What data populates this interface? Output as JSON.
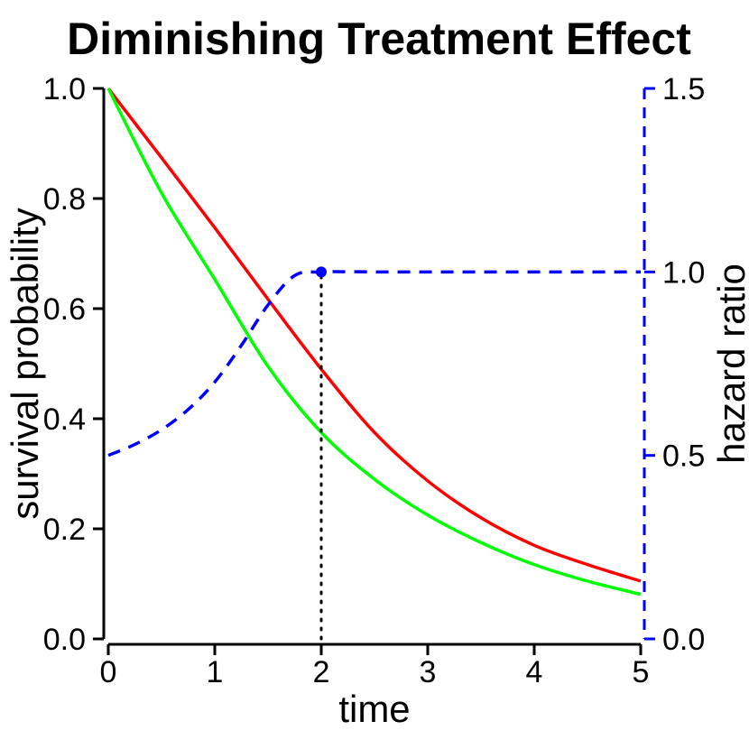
{
  "chart_data": {
    "type": "line",
    "title": "Diminishing Treatment Effect",
    "xlabel": "time",
    "ylabel": "survival probability",
    "y2label": "hazard ratio",
    "xlim": [
      0,
      5
    ],
    "ylim": [
      0,
      1
    ],
    "y2lim": [
      0,
      1.5
    ],
    "xticks": [
      "0",
      "1",
      "2",
      "3",
      "4",
      "5"
    ],
    "yticks": [
      "0.0",
      "0.2",
      "0.4",
      "0.6",
      "0.8",
      "1.0"
    ],
    "y2ticks": [
      "0.0",
      "0.5",
      "1.0",
      "1.5"
    ],
    "grid": false,
    "series": [
      {
        "color": "#ff0000",
        "axis": "left",
        "style": "solid",
        "x": [
          0,
          0.5,
          1,
          1.5,
          2,
          2.5,
          3,
          3.5,
          4,
          4.5,
          5
        ],
        "values": [
          1.0,
          0.874,
          0.747,
          0.617,
          0.49,
          0.375,
          0.287,
          0.22,
          0.17,
          0.135,
          0.105
        ]
      },
      {
        "color": "#00ff00",
        "axis": "left",
        "style": "solid",
        "x": [
          0,
          0.5,
          1,
          1.5,
          2,
          2.5,
          3,
          3.5,
          4,
          4.5,
          5
        ],
        "values": [
          1.0,
          0.81,
          0.653,
          0.495,
          0.375,
          0.29,
          0.225,
          0.175,
          0.135,
          0.105,
          0.081
        ]
      },
      {
        "color": "#0000ff",
        "axis": "right",
        "style": "dashed",
        "x": [
          0,
          0.25,
          0.5,
          0.75,
          1,
          1.25,
          1.5,
          1.75,
          2,
          2.5,
          3,
          3.5,
          4,
          4.5,
          5
        ],
        "values": [
          0.5,
          0.53,
          0.57,
          0.625,
          0.7,
          0.8,
          0.91,
          0.99,
          1.0,
          1.0,
          1.0,
          1.0,
          1.0,
          1.0,
          1.0
        ]
      }
    ],
    "marker": {
      "x": 2,
      "y2": 1.0,
      "color": "#0000ff"
    },
    "vline": {
      "x": 2,
      "from_y": 0,
      "to_y2": 1.0,
      "style": "dotted",
      "color": "#000000"
    },
    "right_axis_color": "#0000ff"
  }
}
